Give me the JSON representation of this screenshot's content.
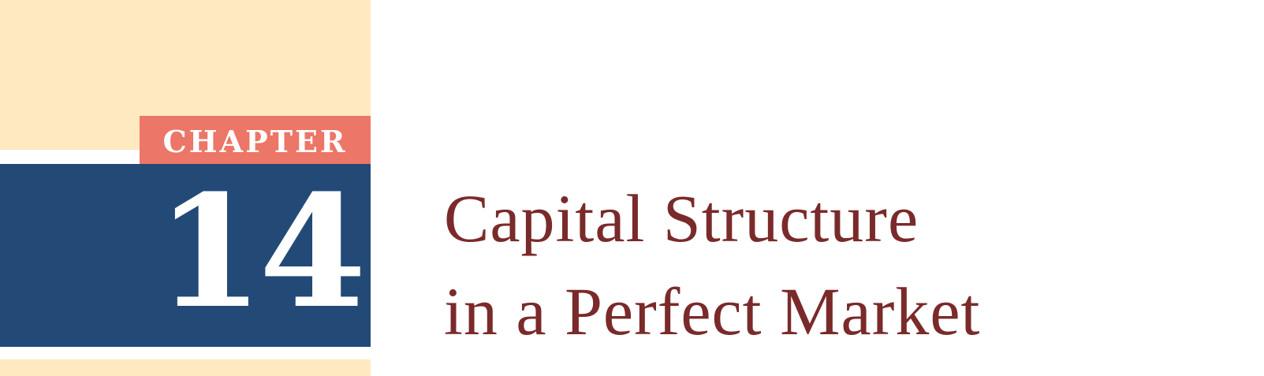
{
  "chapter": {
    "label": "CHAPTER",
    "number": "14"
  },
  "title": {
    "line1": "Capital Structure",
    "line2": "in a Perfect Market"
  },
  "colors": {
    "cream": "#ffe9c0",
    "navy": "#234a77",
    "coral": "#ec7667",
    "title_text": "#7a2a2a"
  }
}
